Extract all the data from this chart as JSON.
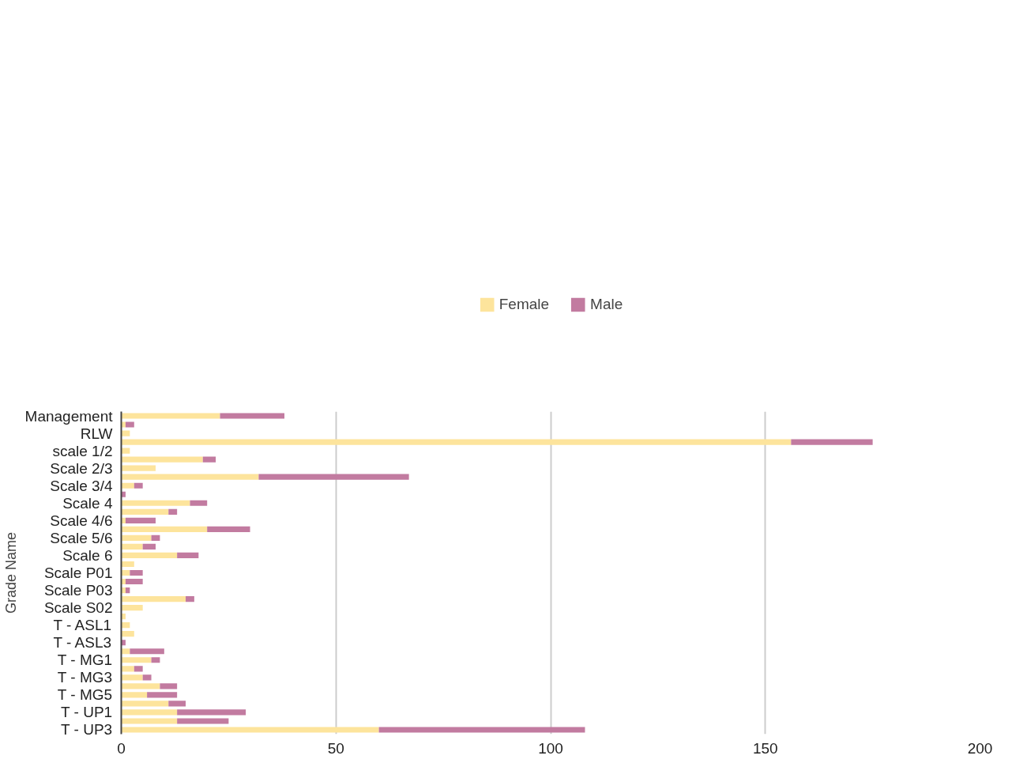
{
  "chart_data": {
    "type": "bar",
    "orientation": "horizontal",
    "stacked": true,
    "ylabel": "Grade Name",
    "categories": [
      "Management",
      null,
      "RLW",
      null,
      "scale 1/2",
      null,
      "Scale 2/3",
      null,
      "Scale 3/4",
      null,
      "Scale 4",
      null,
      "Scale 4/6",
      null,
      "Scale 5/6",
      null,
      "Scale 6",
      null,
      "Scale P01",
      null,
      "Scale P03",
      null,
      "Scale S02",
      null,
      "T - ASL1",
      null,
      "T - ASL3",
      null,
      "T - MG1",
      null,
      "T - MG3",
      null,
      "T - MG5",
      null,
      "T - UP1",
      null,
      "T - UP3"
    ],
    "series": [
      {
        "name": "Female",
        "color": "#fde49c",
        "values": [
          23,
          1,
          2,
          156,
          2,
          19,
          8,
          32,
          3,
          0,
          16,
          11,
          1,
          20,
          7,
          5,
          13,
          3,
          2,
          1,
          1,
          15,
          5,
          1,
          2,
          3,
          0,
          2,
          7,
          3,
          5,
          9,
          6,
          11,
          13,
          13,
          60
        ]
      },
      {
        "name": "Male",
        "color": "#c27ba0",
        "values": [
          15,
          2,
          0,
          19,
          0,
          3,
          0,
          35,
          2,
          1,
          4,
          2,
          7,
          10,
          2,
          3,
          5,
          0,
          3,
          4,
          1,
          2,
          0,
          0,
          0,
          0,
          1,
          8,
          2,
          2,
          2,
          4,
          7,
          4,
          16,
          12,
          48
        ]
      }
    ],
    "xlim": [
      0,
      200
    ],
    "xticks": [
      0,
      50,
      100,
      150,
      200
    ],
    "grid": "x",
    "legend": "top"
  }
}
